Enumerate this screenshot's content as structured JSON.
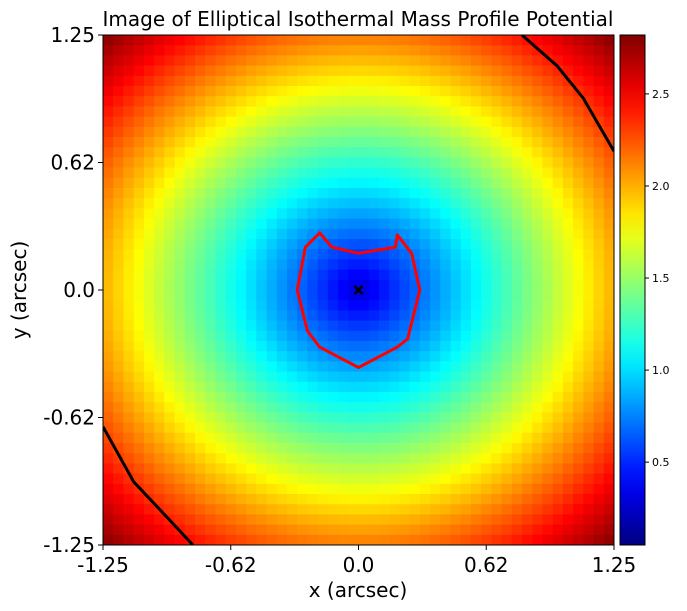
{
  "chart_data": {
    "type": "heatmap",
    "title": "Image of Elliptical Isothermal Mass Profile Potential",
    "xlabel": "x (arcsec)",
    "ylabel": "y (arcsec)",
    "xlim": [
      -1.25,
      1.25
    ],
    "ylim": [
      -1.25,
      1.25
    ],
    "x_ticks": [
      {
        "value": -1.25,
        "label": "-1.25"
      },
      {
        "value": -0.625,
        "label": "-0.62"
      },
      {
        "value": 0.0,
        "label": "0.0"
      },
      {
        "value": 0.625,
        "label": "0.62"
      },
      {
        "value": 1.25,
        "label": "1.25"
      }
    ],
    "y_ticks": [
      {
        "value": -1.25,
        "label": "-1.25"
      },
      {
        "value": -0.625,
        "label": "-0.62"
      },
      {
        "value": 0.0,
        "label": "0.0"
      },
      {
        "value": 0.625,
        "label": "0.62"
      },
      {
        "value": 1.25,
        "label": "1.25"
      }
    ],
    "grid": false,
    "colormap": "jet",
    "colorbar": {
      "min": 0.05,
      "max": 2.82,
      "ticks": [
        {
          "value": 0.5,
          "label": "0.5"
        },
        {
          "value": 1.0,
          "label": "1.0"
        },
        {
          "value": 1.5,
          "label": "1.5"
        },
        {
          "value": 2.0,
          "label": "2.0"
        },
        {
          "value": 2.5,
          "label": "2.5"
        }
      ]
    },
    "model": {
      "profile": "elliptical isothermal",
      "center": [
        0.0,
        0.0
      ],
      "grid_size": 50,
      "value_at_edge_center": 2.0,
      "value_at_corner": 2.82,
      "axis_ratio": 0.92
    },
    "center_marker": {
      "x": 0.0,
      "y": 0.0,
      "symbol": "x",
      "color": "#000000"
    },
    "critical_curve": {
      "color": "#ff0000",
      "points": [
        [
          0.0,
          0.18
        ],
        [
          0.18,
          0.21
        ],
        [
          0.19,
          0.27
        ],
        [
          0.26,
          0.18
        ],
        [
          0.3,
          0.0
        ],
        [
          0.24,
          -0.24
        ],
        [
          0.19,
          -0.28
        ],
        [
          0.0,
          -0.38
        ],
        [
          -0.19,
          -0.28
        ],
        [
          -0.25,
          -0.2
        ],
        [
          -0.3,
          0.0
        ],
        [
          -0.26,
          0.21
        ],
        [
          -0.19,
          0.28
        ],
        [
          -0.13,
          0.21
        ],
        [
          0.0,
          0.18
        ]
      ]
    },
    "caustic_curves": {
      "color": "#000000",
      "segments": [
        [
          [
            0.8,
            1.25
          ],
          [
            0.97,
            1.1
          ],
          [
            1.1,
            0.94
          ],
          [
            1.25,
            0.68
          ]
        ],
        [
          [
            -1.25,
            -0.67
          ],
          [
            -1.1,
            -0.94
          ],
          [
            -0.95,
            -1.1
          ],
          [
            -0.81,
            -1.25
          ]
        ]
      ]
    }
  }
}
